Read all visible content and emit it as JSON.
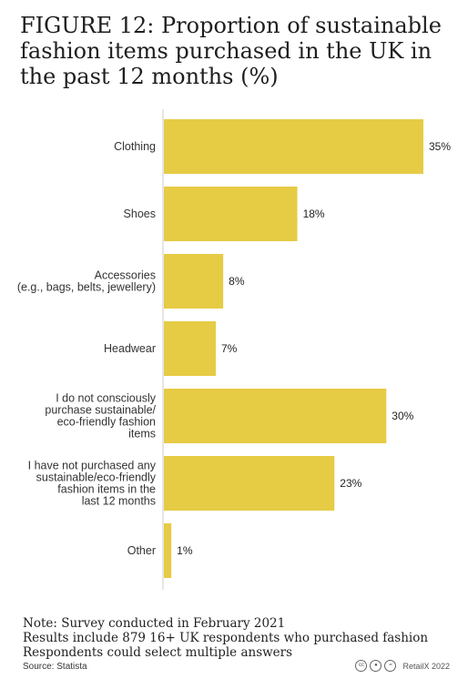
{
  "title": "FIGURE 12: Proportion of sustainable fashion items purchased in the UK in the past 12 months (%)",
  "notes": [
    "Note: Survey conducted in February 2021",
    "Results include 879 16+ UK respondents who purchased fashion",
    "Respondents could select multiple answers"
  ],
  "source": "Source: Statista",
  "credit": "RetailX 2022",
  "icons": [
    "cc-icon",
    "attribution-icon",
    "equal-icon"
  ],
  "colors": {
    "bar": "#E6CB45",
    "axis": "#cccccc"
  },
  "chart_data": {
    "type": "bar",
    "orientation": "horizontal",
    "categories": [
      [
        "Clothing"
      ],
      [
        "Shoes"
      ],
      [
        "Accessories",
        "(e.g., bags, belts, jewellery)"
      ],
      [
        "Headwear"
      ],
      [
        "I do not consciously",
        "purchase sustainable/",
        "eco-friendly fashion",
        "items"
      ],
      [
        "I have not purchased any",
        "sustainable/eco-friendly",
        "fashion items in the",
        "last 12 months"
      ],
      [
        "Other"
      ]
    ],
    "values": [
      35,
      18,
      8,
      7,
      30,
      23,
      1
    ],
    "value_labels": [
      "35%",
      "18%",
      "8%",
      "7%",
      "30%",
      "23%",
      "1%"
    ],
    "unit": "%",
    "xlim": [
      0,
      35
    ],
    "grid": false,
    "legend": "none"
  }
}
